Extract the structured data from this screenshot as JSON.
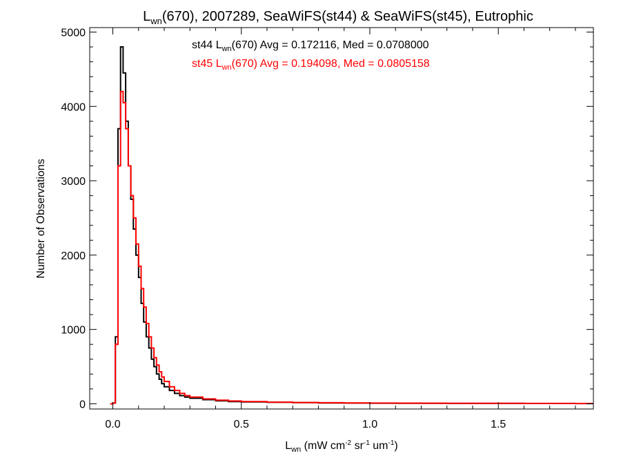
{
  "chart_data": {
    "type": "line",
    "step": true,
    "title": {
      "prefix": "L",
      "sub": "wn",
      "suffix": "(670), 2007289, SeaWiFS(st44) & SeaWiFS(st45), Eutrophic"
    },
    "xlabel": {
      "prefix": "L",
      "sub": "wn",
      "p1": " (mW cm",
      "s1": "-2",
      "p2": " sr",
      "s2": "-1",
      "p3": " um",
      "s3": "-1",
      "p4": ")"
    },
    "ylabel": "Number of Observations",
    "xlim": [
      -0.09,
      1.87
    ],
    "ylim": [
      -70,
      5060
    ],
    "xticks": [
      {
        "v": 0.0,
        "label": "0.0"
      },
      {
        "v": 0.5,
        "label": "0.5"
      },
      {
        "v": 1.0,
        "label": "1.0"
      },
      {
        "v": 1.5,
        "label": "1.5"
      }
    ],
    "yticks": [
      {
        "v": 0,
        "label": "0"
      },
      {
        "v": 1000,
        "label": "1000"
      },
      {
        "v": 2000,
        "label": "2000"
      },
      {
        "v": 3000,
        "label": "3000"
      },
      {
        "v": 4000,
        "label": "4000"
      },
      {
        "v": 5000,
        "label": "5000"
      }
    ],
    "annotations": [
      {
        "series": "st44",
        "color": "#000000",
        "prefix": "st44 L",
        "sub": "wn",
        "suffix": "(670) Avg = 0.172116, Med = 0.0708000"
      },
      {
        "series": "st45",
        "color": "#ff0000",
        "prefix": "st45 L",
        "sub": "wn",
        "suffix": "(670) Avg = 0.194098, Med = 0.0805158"
      }
    ],
    "series": [
      {
        "name": "st44",
        "color": "#000000",
        "x": [
          -0.01,
          0.0,
          0.01,
          0.02,
          0.03,
          0.04,
          0.05,
          0.06,
          0.07,
          0.08,
          0.09,
          0.1,
          0.11,
          0.12,
          0.13,
          0.14,
          0.15,
          0.16,
          0.17,
          0.18,
          0.19,
          0.2,
          0.22,
          0.24,
          0.26,
          0.28,
          0.3,
          0.35,
          0.4,
          0.45,
          0.5,
          0.6,
          0.7,
          0.8,
          0.9,
          1.0,
          1.1,
          1.2,
          1.3,
          1.4,
          1.5,
          1.6,
          1.7,
          1.8,
          1.87
        ],
        "y": [
          0,
          10,
          900,
          3700,
          4800,
          4450,
          3800,
          3200,
          2750,
          2350,
          2000,
          1700,
          1350,
          1100,
          900,
          750,
          600,
          500,
          400,
          330,
          270,
          230,
          180,
          140,
          110,
          90,
          75,
          55,
          40,
          30,
          25,
          20,
          15,
          12,
          10,
          8,
          7,
          6,
          5,
          5,
          5,
          4,
          4,
          3,
          3
        ]
      },
      {
        "name": "st45",
        "color": "#ff0000",
        "x": [
          -0.01,
          0.0,
          0.01,
          0.02,
          0.03,
          0.04,
          0.05,
          0.06,
          0.07,
          0.08,
          0.09,
          0.1,
          0.11,
          0.12,
          0.13,
          0.14,
          0.15,
          0.16,
          0.17,
          0.18,
          0.19,
          0.2,
          0.22,
          0.24,
          0.26,
          0.28,
          0.3,
          0.35,
          0.4,
          0.45,
          0.5,
          0.6,
          0.7,
          0.8,
          0.9,
          1.0,
          1.1,
          1.2,
          1.3,
          1.4,
          1.5,
          1.6,
          1.7,
          1.8,
          1.87
        ],
        "y": [
          0,
          10,
          800,
          3200,
          4200,
          4050,
          3700,
          3200,
          2800,
          2500,
          2150,
          1850,
          1550,
          1300,
          1080,
          900,
          750,
          620,
          520,
          430,
          360,
          300,
          230,
          180,
          140,
          110,
          90,
          65,
          48,
          38,
          30,
          22,
          17,
          14,
          12,
          10,
          9,
          8,
          7,
          6,
          6,
          5,
          5,
          4,
          4
        ]
      }
    ]
  }
}
